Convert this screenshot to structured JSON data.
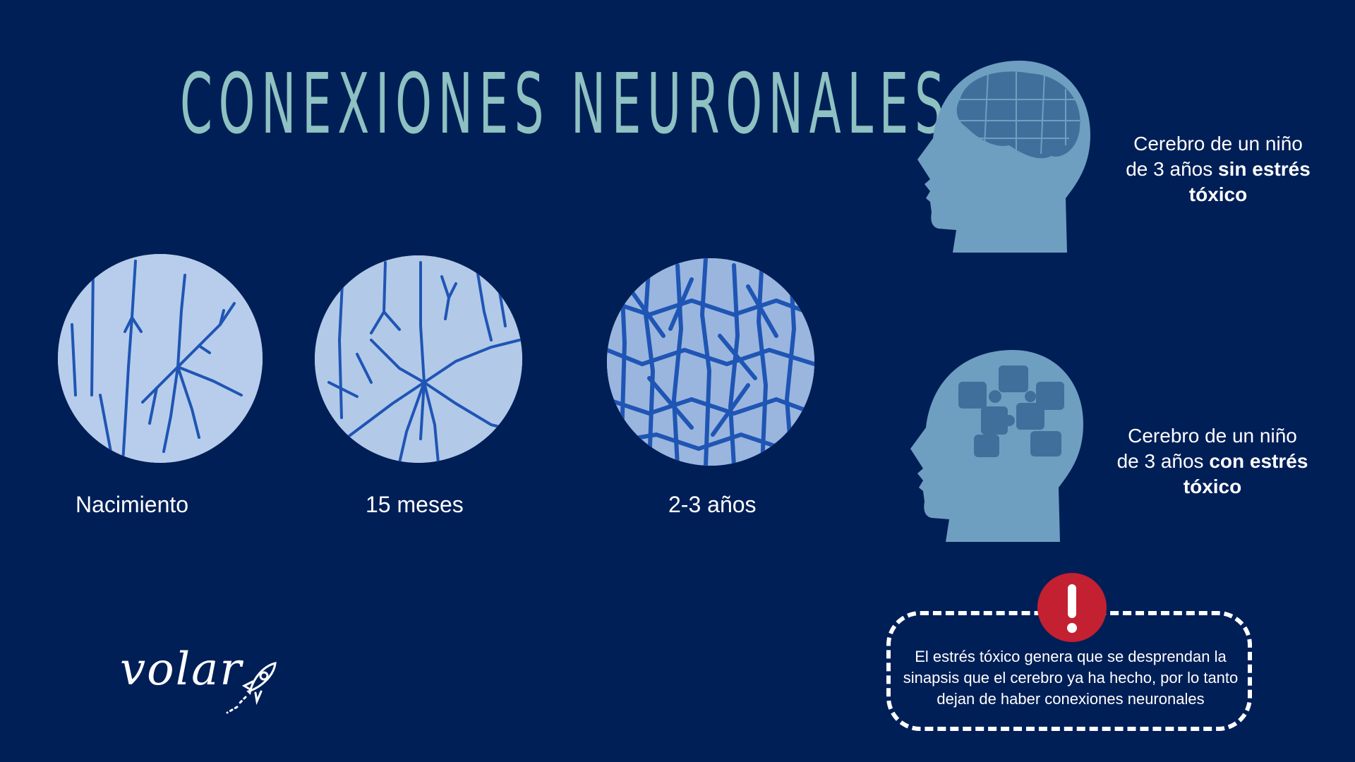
{
  "title": "CONEXIONES NEURONALES",
  "stages": [
    {
      "label": "Nacimiento"
    },
    {
      "label": "15 meses"
    },
    {
      "label": "2-3 años"
    }
  ],
  "heads": [
    {
      "line1": "Cerebro de un niño",
      "line2": "de 3 años",
      "bold": "sin estrés tóxico"
    },
    {
      "line1": "Cerebro de un niño",
      "line2": "de 3 años",
      "bold": "con estrés tóxico"
    }
  ],
  "warning": {
    "icon": "exclamation-icon",
    "text": "El estrés tóxico genera que se desprendan la sinapsis que el cerebro ya ha hecho, por lo tanto dejan de haber conexiones neuronales"
  },
  "logo": {
    "text": "volar",
    "icon": "rocket-icon"
  },
  "colors": {
    "background": "#001f57",
    "title": "#8ec1c1",
    "head": "#6e9fc0",
    "neuron": "#1f55b4",
    "warning": "#c32031"
  }
}
